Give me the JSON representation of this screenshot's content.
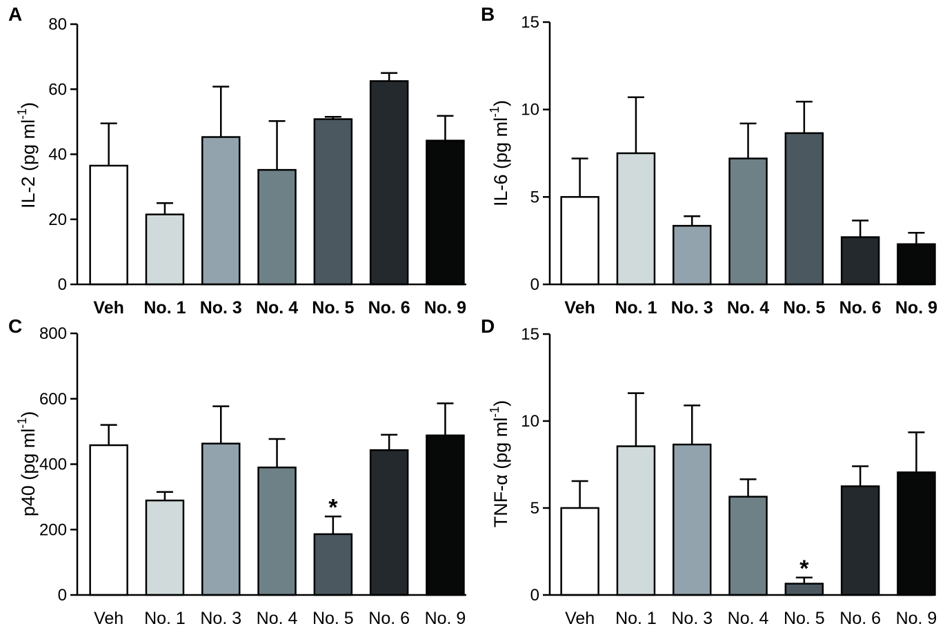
{
  "chart_data": [
    {
      "type": "bar",
      "panel": "A",
      "categories": [
        "Veh",
        "No. 1",
        "No. 3",
        "No. 4",
        "No. 5",
        "No. 6",
        "No. 9"
      ],
      "values": [
        36.5,
        21.5,
        45.3,
        35.2,
        50.8,
        62.5,
        44.2
      ],
      "errors": [
        13.0,
        3.5,
        15.5,
        15.0,
        0.7,
        2.5,
        7.6
      ],
      "significance": [
        "",
        "",
        "",
        "",
        "",
        "",
        ""
      ],
      "ylabel": "IL-2 (pg ml",
      "ylabel_sup": "-1",
      "ylabel_close": ")",
      "ylim": [
        0,
        80
      ],
      "yticks": [
        0,
        20,
        40,
        60,
        80
      ],
      "ytick_labels": [
        "0",
        "20",
        "40",
        "60",
        "80"
      ],
      "bold_categories": true
    },
    {
      "type": "bar",
      "panel": "B",
      "categories": [
        "Veh",
        "No. 1",
        "No. 3",
        "No. 4",
        "No. 5",
        "No. 6",
        "No. 9"
      ],
      "values": [
        5.0,
        7.5,
        3.35,
        7.2,
        8.65,
        2.7,
        2.3
      ],
      "errors": [
        2.2,
        3.2,
        0.55,
        2.0,
        1.8,
        0.95,
        0.65
      ],
      "significance": [
        "",
        "",
        "",
        "",
        "",
        "",
        ""
      ],
      "ylabel": "IL-6 (pg ml",
      "ylabel_sup": "-1",
      "ylabel_close": ")",
      "ylim": [
        0,
        15
      ],
      "yticks": [
        0,
        5,
        10,
        15
      ],
      "ytick_labels": [
        "0",
        "5",
        "10",
        "15"
      ],
      "bold_categories": true
    },
    {
      "type": "bar",
      "panel": "C",
      "categories": [
        "Veh",
        "No. 1",
        "No. 3",
        "No. 4",
        "No. 5",
        "No. 6",
        "No. 9"
      ],
      "values": [
        458,
        289,
        463,
        390,
        186,
        443,
        488
      ],
      "errors": [
        62,
        26,
        114,
        87,
        54,
        47,
        98
      ],
      "significance": [
        "",
        "",
        "",
        "",
        "*",
        "",
        ""
      ],
      "ylabel": "p40 (pg ml",
      "ylabel_sup": "-1",
      "ylabel_close": ")",
      "ylim": [
        0,
        800
      ],
      "yticks": [
        0,
        200,
        400,
        600,
        800
      ],
      "ytick_labels": [
        "0",
        "200",
        "400",
        "600",
        "800"
      ],
      "bold_categories": false
    },
    {
      "type": "bar",
      "panel": "D",
      "categories": [
        "Veh",
        "No. 1",
        "No. 3",
        "No. 4",
        "No. 5",
        "No. 6",
        "No. 9"
      ],
      "values": [
        5.0,
        8.55,
        8.65,
        5.65,
        0.65,
        6.25,
        7.05
      ],
      "errors": [
        1.55,
        3.05,
        2.25,
        1.0,
        0.35,
        1.15,
        2.3
      ],
      "significance": [
        "",
        "",
        "",
        "",
        "*",
        "",
        ""
      ],
      "ylabel": "TNF-α (pg ml",
      "ylabel_sup": "-1",
      "ylabel_close": ")",
      "ylim": [
        0,
        15
      ],
      "yticks": [
        0,
        5,
        10,
        15
      ],
      "ytick_labels": [
        "0",
        "5",
        "10",
        "15"
      ],
      "bold_categories": false
    }
  ],
  "colors": [
    "#ffffff",
    "#d0dadb",
    "#92a3ad",
    "#6e8186",
    "#4b585f",
    "#24292d",
    "#070808"
  ],
  "axis_color": "#000000"
}
